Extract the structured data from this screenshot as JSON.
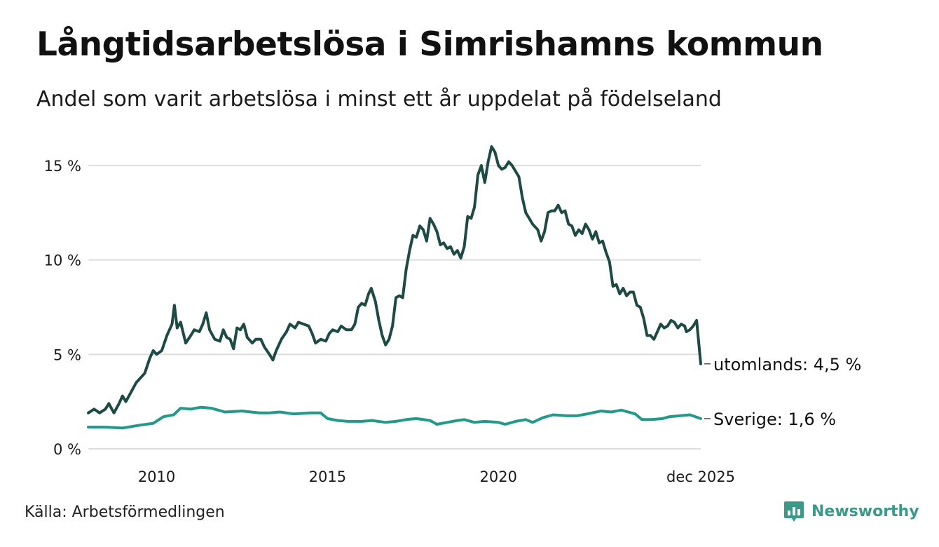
{
  "header": {
    "title": "Långtidsarbetslösa i Simrishamns kommun",
    "subtitle": "Andel som varit arbetslösa i minst ett år uppdelat på födelseland"
  },
  "footer": {
    "source": "Källa: Arbetsförmedlingen",
    "brand": "Newsworthy"
  },
  "colors": {
    "series_foreign": "#1e4a44",
    "series_sweden": "#23998a",
    "grid": "#dddddd",
    "brand": "#3a9a8a"
  },
  "chart_data": {
    "type": "line",
    "title": "Långtidsarbetslösa i Simrishamns kommun",
    "xlabel": "",
    "ylabel": "",
    "xlim": [
      2008.0,
      2025.92
    ],
    "ylim": [
      0,
      16
    ],
    "yticks": [
      0,
      5,
      10,
      15
    ],
    "ytick_labels": [
      "0 %",
      "5 %",
      "10 %",
      "15 %"
    ],
    "xticks": [
      2010,
      2015,
      2020,
      2025.92
    ],
    "xtick_labels": [
      "2010",
      "2015",
      "2020",
      "dec 2025"
    ],
    "grid": true,
    "series": [
      {
        "name": "utomlands",
        "end_label": "utomlands: 4,5 %",
        "points": [
          [
            2008.0,
            1.9
          ],
          [
            2008.17,
            2.1
          ],
          [
            2008.33,
            1.9
          ],
          [
            2008.5,
            2.1
          ],
          [
            2008.6,
            2.4
          ],
          [
            2008.75,
            1.9
          ],
          [
            2008.9,
            2.4
          ],
          [
            2009.0,
            2.8
          ],
          [
            2009.1,
            2.5
          ],
          [
            2009.25,
            3.0
          ],
          [
            2009.4,
            3.5
          ],
          [
            2009.5,
            3.7
          ],
          [
            2009.65,
            4.0
          ],
          [
            2009.8,
            4.8
          ],
          [
            2009.9,
            5.2
          ],
          [
            2010.0,
            5.0
          ],
          [
            2010.15,
            5.2
          ],
          [
            2010.3,
            6.0
          ],
          [
            2010.45,
            6.6
          ],
          [
            2010.52,
            7.6
          ],
          [
            2010.6,
            6.4
          ],
          [
            2010.7,
            6.7
          ],
          [
            2010.85,
            5.6
          ],
          [
            2011.0,
            6.0
          ],
          [
            2011.1,
            6.3
          ],
          [
            2011.25,
            6.2
          ],
          [
            2011.35,
            6.6
          ],
          [
            2011.45,
            7.2
          ],
          [
            2011.55,
            6.3
          ],
          [
            2011.7,
            5.8
          ],
          [
            2011.85,
            5.7
          ],
          [
            2011.95,
            6.3
          ],
          [
            2012.05,
            5.9
          ],
          [
            2012.15,
            5.8
          ],
          [
            2012.25,
            5.3
          ],
          [
            2012.35,
            6.4
          ],
          [
            2012.45,
            6.3
          ],
          [
            2012.55,
            6.6
          ],
          [
            2012.65,
            5.9
          ],
          [
            2012.8,
            5.6
          ],
          [
            2012.9,
            5.8
          ],
          [
            2013.05,
            5.8
          ],
          [
            2013.15,
            5.4
          ],
          [
            2013.3,
            5.0
          ],
          [
            2013.4,
            4.7
          ],
          [
            2013.5,
            5.2
          ],
          [
            2013.65,
            5.8
          ],
          [
            2013.8,
            6.2
          ],
          [
            2013.9,
            6.6
          ],
          [
            2014.05,
            6.4
          ],
          [
            2014.15,
            6.7
          ],
          [
            2014.3,
            6.6
          ],
          [
            2014.45,
            6.5
          ],
          [
            2014.55,
            6.1
          ],
          [
            2014.65,
            5.6
          ],
          [
            2014.8,
            5.8
          ],
          [
            2014.95,
            5.7
          ],
          [
            2015.05,
            6.1
          ],
          [
            2015.15,
            6.3
          ],
          [
            2015.3,
            6.2
          ],
          [
            2015.4,
            6.5
          ],
          [
            2015.55,
            6.3
          ],
          [
            2015.7,
            6.3
          ],
          [
            2015.8,
            6.6
          ],
          [
            2015.9,
            7.5
          ],
          [
            2016.0,
            7.7
          ],
          [
            2016.1,
            7.6
          ],
          [
            2016.2,
            8.2
          ],
          [
            2016.28,
            8.5
          ],
          [
            2016.4,
            7.8
          ],
          [
            2016.5,
            6.8
          ],
          [
            2016.6,
            6.0
          ],
          [
            2016.7,
            5.5
          ],
          [
            2016.8,
            5.8
          ],
          [
            2016.9,
            6.5
          ],
          [
            2017.0,
            8.0
          ],
          [
            2017.1,
            8.1
          ],
          [
            2017.2,
            8.0
          ],
          [
            2017.3,
            9.5
          ],
          [
            2017.4,
            10.5
          ],
          [
            2017.5,
            11.3
          ],
          [
            2017.6,
            11.2
          ],
          [
            2017.7,
            11.8
          ],
          [
            2017.8,
            11.6
          ],
          [
            2017.9,
            11.0
          ],
          [
            2018.0,
            12.2
          ],
          [
            2018.1,
            11.9
          ],
          [
            2018.2,
            11.5
          ],
          [
            2018.3,
            10.8
          ],
          [
            2018.4,
            10.9
          ],
          [
            2018.5,
            10.6
          ],
          [
            2018.6,
            10.7
          ],
          [
            2018.7,
            10.3
          ],
          [
            2018.8,
            10.5
          ],
          [
            2018.9,
            10.1
          ],
          [
            2019.0,
            10.7
          ],
          [
            2019.1,
            12.3
          ],
          [
            2019.2,
            12.2
          ],
          [
            2019.3,
            12.8
          ],
          [
            2019.4,
            14.5
          ],
          [
            2019.5,
            15.0
          ],
          [
            2019.6,
            14.1
          ],
          [
            2019.7,
            15.2
          ],
          [
            2019.8,
            16.0
          ],
          [
            2019.9,
            15.7
          ],
          [
            2020.0,
            15.0
          ],
          [
            2020.1,
            14.8
          ],
          [
            2020.2,
            14.9
          ],
          [
            2020.3,
            15.2
          ],
          [
            2020.4,
            15.0
          ],
          [
            2020.5,
            14.7
          ],
          [
            2020.6,
            14.4
          ],
          [
            2020.7,
            13.3
          ],
          [
            2020.8,
            12.5
          ],
          [
            2020.9,
            12.2
          ],
          [
            2021.0,
            11.9
          ],
          [
            2021.15,
            11.6
          ],
          [
            2021.25,
            11.0
          ],
          [
            2021.35,
            11.5
          ],
          [
            2021.45,
            12.5
          ],
          [
            2021.55,
            12.6
          ],
          [
            2021.65,
            12.6
          ],
          [
            2021.75,
            12.9
          ],
          [
            2021.85,
            12.5
          ],
          [
            2021.95,
            12.6
          ],
          [
            2022.05,
            11.9
          ],
          [
            2022.15,
            11.8
          ],
          [
            2022.25,
            11.3
          ],
          [
            2022.35,
            11.6
          ],
          [
            2022.45,
            11.4
          ],
          [
            2022.55,
            11.9
          ],
          [
            2022.65,
            11.6
          ],
          [
            2022.75,
            11.1
          ],
          [
            2022.85,
            11.5
          ],
          [
            2022.95,
            10.9
          ],
          [
            2023.05,
            11.0
          ],
          [
            2023.15,
            10.4
          ],
          [
            2023.25,
            9.9
          ],
          [
            2023.35,
            8.6
          ],
          [
            2023.45,
            8.7
          ],
          [
            2023.55,
            8.2
          ],
          [
            2023.65,
            8.5
          ],
          [
            2023.75,
            8.1
          ],
          [
            2023.85,
            8.3
          ],
          [
            2023.95,
            8.3
          ],
          [
            2024.05,
            7.6
          ],
          [
            2024.15,
            7.5
          ],
          [
            2024.25,
            6.9
          ],
          [
            2024.35,
            6.0
          ],
          [
            2024.45,
            6.0
          ],
          [
            2024.55,
            5.8
          ],
          [
            2024.65,
            6.2
          ],
          [
            2024.75,
            6.6
          ],
          [
            2024.85,
            6.4
          ],
          [
            2024.95,
            6.5
          ],
          [
            2025.05,
            6.8
          ],
          [
            2025.15,
            6.7
          ],
          [
            2025.25,
            6.4
          ],
          [
            2025.35,
            6.6
          ],
          [
            2025.45,
            6.5
          ],
          [
            2025.5,
            6.2
          ],
          [
            2025.6,
            6.3
          ],
          [
            2025.7,
            6.5
          ],
          [
            2025.8,
            6.8
          ],
          [
            2025.92,
            4.5
          ]
        ]
      },
      {
        "name": "Sverige",
        "end_label": "Sverige: 1,6 %",
        "points": [
          [
            2008.0,
            1.15
          ],
          [
            2008.5,
            1.15
          ],
          [
            2009.0,
            1.1
          ],
          [
            2009.5,
            1.25
          ],
          [
            2009.9,
            1.35
          ],
          [
            2010.2,
            1.7
          ],
          [
            2010.5,
            1.8
          ],
          [
            2010.7,
            2.15
          ],
          [
            2011.0,
            2.1
          ],
          [
            2011.3,
            2.2
          ],
          [
            2011.6,
            2.15
          ],
          [
            2012.0,
            1.95
          ],
          [
            2012.5,
            2.0
          ],
          [
            2013.0,
            1.9
          ],
          [
            2013.3,
            1.9
          ],
          [
            2013.6,
            1.95
          ],
          [
            2014.0,
            1.85
          ],
          [
            2014.5,
            1.9
          ],
          [
            2014.8,
            1.9
          ],
          [
            2015.0,
            1.6
          ],
          [
            2015.3,
            1.5
          ],
          [
            2015.6,
            1.45
          ],
          [
            2016.0,
            1.45
          ],
          [
            2016.3,
            1.5
          ],
          [
            2016.7,
            1.4
          ],
          [
            2017.0,
            1.45
          ],
          [
            2017.3,
            1.55
          ],
          [
            2017.6,
            1.6
          ],
          [
            2018.0,
            1.5
          ],
          [
            2018.2,
            1.3
          ],
          [
            2018.5,
            1.4
          ],
          [
            2018.8,
            1.5
          ],
          [
            2019.0,
            1.55
          ],
          [
            2019.3,
            1.4
          ],
          [
            2019.6,
            1.45
          ],
          [
            2020.0,
            1.4
          ],
          [
            2020.2,
            1.3
          ],
          [
            2020.5,
            1.45
          ],
          [
            2020.8,
            1.55
          ],
          [
            2021.0,
            1.4
          ],
          [
            2021.3,
            1.65
          ],
          [
            2021.6,
            1.8
          ],
          [
            2022.0,
            1.75
          ],
          [
            2022.3,
            1.75
          ],
          [
            2022.6,
            1.85
          ],
          [
            2023.0,
            2.0
          ],
          [
            2023.3,
            1.95
          ],
          [
            2023.6,
            2.05
          ],
          [
            2024.0,
            1.85
          ],
          [
            2024.2,
            1.55
          ],
          [
            2024.5,
            1.55
          ],
          [
            2024.8,
            1.6
          ],
          [
            2025.0,
            1.7
          ],
          [
            2025.3,
            1.75
          ],
          [
            2025.6,
            1.8
          ],
          [
            2025.92,
            1.6
          ]
        ]
      }
    ]
  }
}
